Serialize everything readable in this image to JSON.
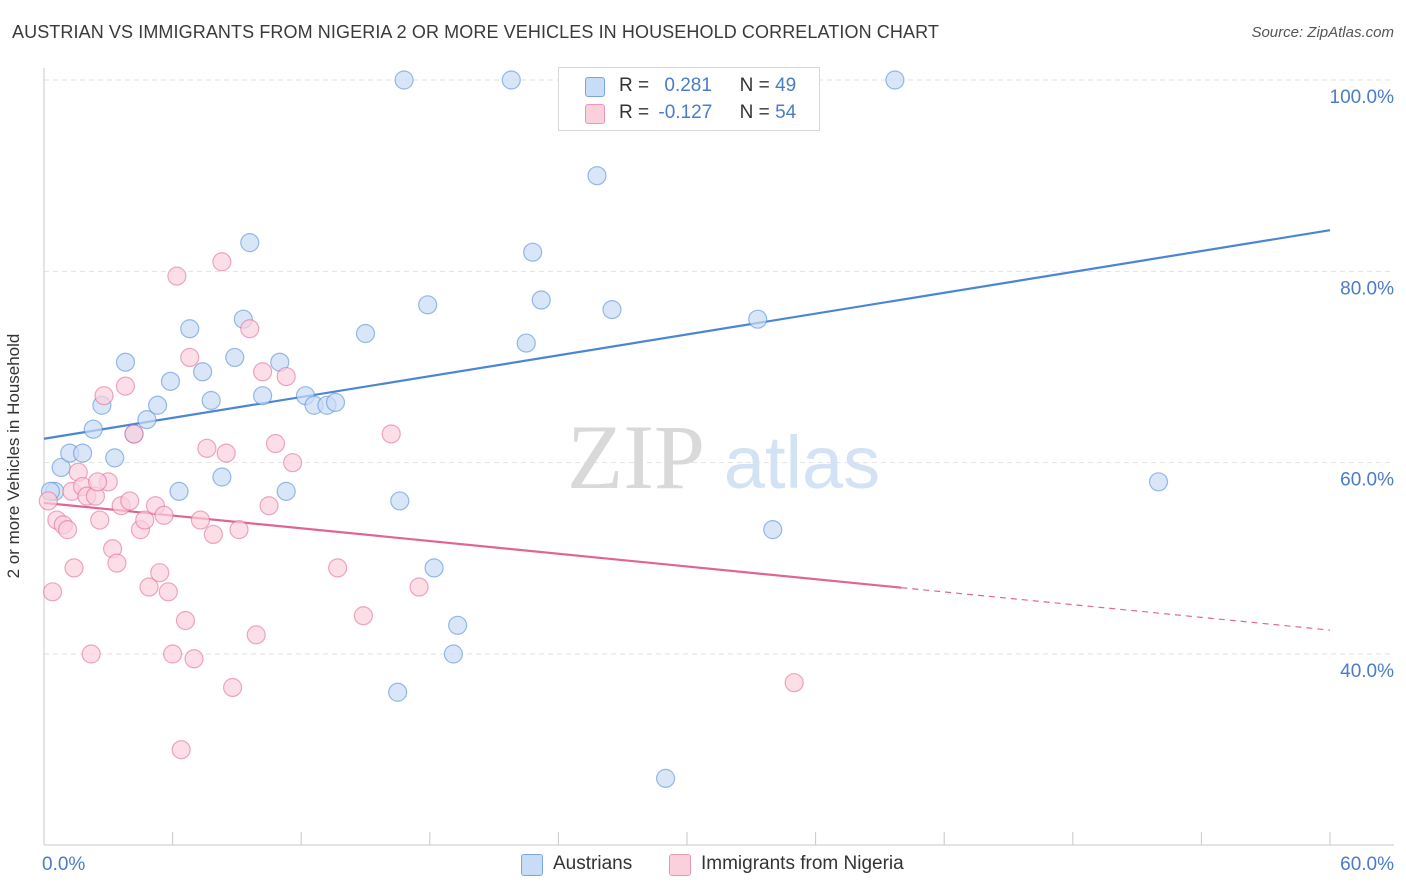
{
  "title": "AUSTRIAN VS IMMIGRANTS FROM NIGERIA 2 OR MORE VEHICLES IN HOUSEHOLD CORRELATION CHART",
  "source": "Source: ZipAtlas.com",
  "watermark": {
    "zip": "ZIP",
    "atlas": "atlas"
  },
  "legend": [
    {
      "r_label": "R =",
      "r_value": "0.281",
      "n_label": "N =",
      "n_value": "49",
      "color": "#a9c8f0"
    },
    {
      "r_label": "R =",
      "r_value": "-0.127",
      "n_label": "N =",
      "n_value": "54",
      "color": "#f7b8cc"
    }
  ],
  "bottom_legend": [
    "Austrians",
    "Immigrants from Nigeria"
  ],
  "chart_data": {
    "type": "scatter",
    "ylabel": "2 or more Vehicles in Household",
    "xlim": [
      0,
      60
    ],
    "ylim": [
      20,
      100
    ],
    "x_tick_labels": [
      "0.0%",
      "60.0%"
    ],
    "y_tick_labels": [
      "100.0%",
      "80.0%",
      "60.0%",
      "40.0%"
    ],
    "y_ticks": [
      100,
      80,
      60,
      40
    ],
    "grid": true,
    "series": [
      {
        "name": "Austrians",
        "color": "#4a86d4",
        "fill": "#c9dcf5",
        "trend": {
          "x": [
            0,
            60
          ],
          "y": [
            62.5,
            84.3
          ],
          "dashed_from": null
        },
        "points": [
          [
            0.5,
            57.0
          ],
          [
            0.8,
            59.5
          ],
          [
            1.2,
            61.0
          ],
          [
            1.8,
            61.0
          ],
          [
            2.3,
            63.5
          ],
          [
            2.7,
            66.0
          ],
          [
            3.3,
            60.5
          ],
          [
            3.8,
            70.5
          ],
          [
            4.2,
            63.0
          ],
          [
            4.8,
            64.5
          ],
          [
            5.3,
            66.0
          ],
          [
            5.9,
            68.5
          ],
          [
            6.3,
            57.0
          ],
          [
            6.8,
            74.0
          ],
          [
            7.4,
            69.5
          ],
          [
            7.8,
            66.5
          ],
          [
            8.3,
            58.5
          ],
          [
            8.9,
            71.0
          ],
          [
            9.3,
            75.0
          ],
          [
            9.6,
            83.0
          ],
          [
            10.2,
            67.0
          ],
          [
            11.0,
            70.5
          ],
          [
            11.3,
            57.0
          ],
          [
            12.2,
            67.0
          ],
          [
            12.6,
            66.0
          ],
          [
            13.2,
            66.0
          ],
          [
            13.6,
            66.3
          ],
          [
            15.0,
            73.5
          ],
          [
            16.5,
            36.0
          ],
          [
            16.6,
            56.0
          ],
          [
            16.8,
            100.0
          ],
          [
            17.9,
            76.5
          ],
          [
            18.2,
            49.0
          ],
          [
            19.1,
            40.0
          ],
          [
            19.3,
            43.0
          ],
          [
            21.8,
            100.0
          ],
          [
            22.5,
            72.5
          ],
          [
            22.8,
            82.0
          ],
          [
            23.2,
            77.0
          ],
          [
            25.8,
            90.0
          ],
          [
            26.5,
            76.0
          ],
          [
            27.3,
            100.0
          ],
          [
            29.0,
            27.0
          ],
          [
            33.3,
            75.0
          ],
          [
            34.0,
            53.0
          ],
          [
            35.2,
            100.0
          ],
          [
            39.7,
            100.0
          ],
          [
            52.0,
            58.0
          ],
          [
            0.3,
            57.0
          ]
        ]
      },
      {
        "name": "Immigrants from Nigeria",
        "color": "#e06595",
        "fill": "#fbd0dd",
        "trend": {
          "x": [
            0,
            60
          ],
          "y": [
            55.8,
            42.5
          ],
          "dashed_from": 40
        },
        "points": [
          [
            0.2,
            56.0
          ],
          [
            0.4,
            46.5
          ],
          [
            0.6,
            54.0
          ],
          [
            0.9,
            53.5
          ],
          [
            1.1,
            53.0
          ],
          [
            1.3,
            57.0
          ],
          [
            1.4,
            49.0
          ],
          [
            1.6,
            59.0
          ],
          [
            1.8,
            57.5
          ],
          [
            2.0,
            56.5
          ],
          [
            2.2,
            40.0
          ],
          [
            2.4,
            56.5
          ],
          [
            2.6,
            54.0
          ],
          [
            2.8,
            67.0
          ],
          [
            3.0,
            58.0
          ],
          [
            3.2,
            51.0
          ],
          [
            3.4,
            49.5
          ],
          [
            3.6,
            55.5
          ],
          [
            3.8,
            68.0
          ],
          [
            4.0,
            56.0
          ],
          [
            4.2,
            63.0
          ],
          [
            4.5,
            53.0
          ],
          [
            4.7,
            54.0
          ],
          [
            4.9,
            47.0
          ],
          [
            5.2,
            55.5
          ],
          [
            5.4,
            48.5
          ],
          [
            5.6,
            54.5
          ],
          [
            5.8,
            46.5
          ],
          [
            6.0,
            40.0
          ],
          [
            6.2,
            79.5
          ],
          [
            6.4,
            30.0
          ],
          [
            6.6,
            43.5
          ],
          [
            6.8,
            71.0
          ],
          [
            7.0,
            39.5
          ],
          [
            7.3,
            54.0
          ],
          [
            7.6,
            61.5
          ],
          [
            7.9,
            52.5
          ],
          [
            8.3,
            81.0
          ],
          [
            8.5,
            61.0
          ],
          [
            8.8,
            36.5
          ],
          [
            9.1,
            53.0
          ],
          [
            9.6,
            74.0
          ],
          [
            9.9,
            42.0
          ],
          [
            10.2,
            69.5
          ],
          [
            10.5,
            55.5
          ],
          [
            10.8,
            62.0
          ],
          [
            11.3,
            69.0
          ],
          [
            11.6,
            60.0
          ],
          [
            13.7,
            49.0
          ],
          [
            14.9,
            44.0
          ],
          [
            16.2,
            63.0
          ],
          [
            17.5,
            47.0
          ],
          [
            35.0,
            37.0
          ],
          [
            2.5,
            58.0
          ]
        ]
      }
    ]
  }
}
